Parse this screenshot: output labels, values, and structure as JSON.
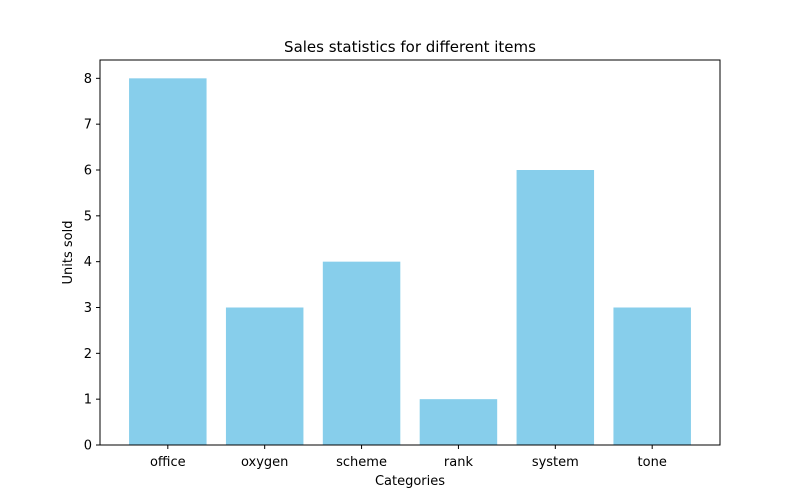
{
  "chart_data": {
    "type": "bar",
    "title": "Sales statistics for different items",
    "xlabel": "Categories",
    "ylabel": "Units sold",
    "categories": [
      "office",
      "oxygen",
      "scheme",
      "rank",
      "system",
      "tone"
    ],
    "values": [
      8,
      3,
      4,
      1,
      6,
      3
    ],
    "ylim": [
      0,
      8.4
    ],
    "yticks": [
      0,
      1,
      2,
      3,
      4,
      5,
      6,
      7,
      8
    ],
    "grid": false,
    "bar_color": "#87CEEB",
    "axis_color": "#000000"
  }
}
